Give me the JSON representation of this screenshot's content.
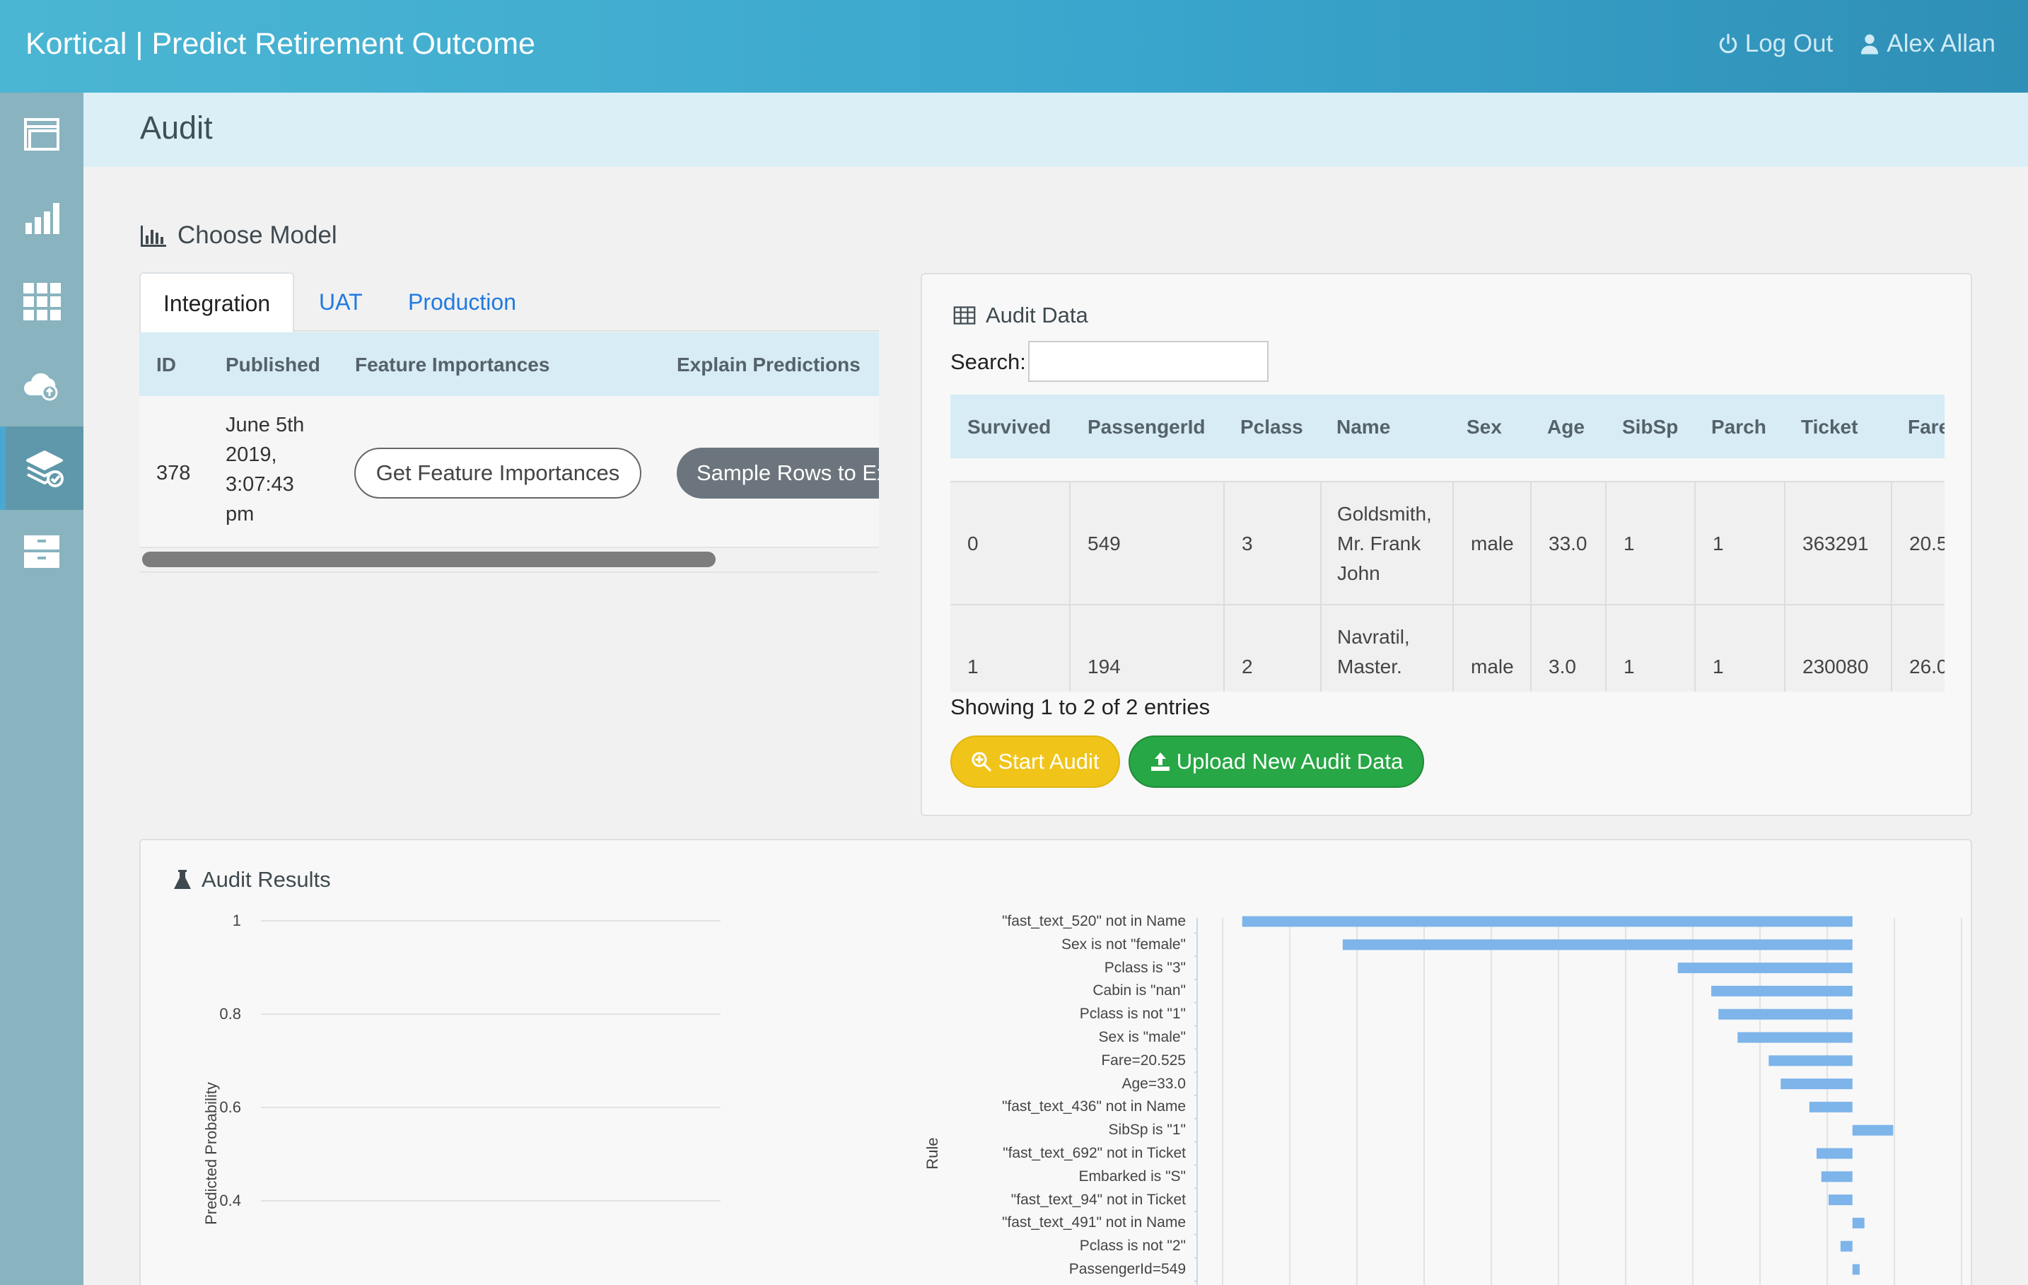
{
  "header": {
    "title": "Kortical | Predict Retirement Outcome",
    "logout_label": "Log Out",
    "user_label": "Alex Allan"
  },
  "sidebar": {
    "items": [
      {
        "icon": "window-icon"
      },
      {
        "icon": "bar-chart-icon"
      },
      {
        "icon": "grid-icon"
      },
      {
        "icon": "cloud-upload-icon"
      },
      {
        "icon": "layers-check-icon",
        "active": true
      },
      {
        "icon": "archive-icon"
      }
    ]
  },
  "page": {
    "title": "Audit"
  },
  "choose_model": {
    "title": "Choose Model",
    "tabs": [
      {
        "label": "Integration",
        "active": true
      },
      {
        "label": "UAT"
      },
      {
        "label": "Production"
      }
    ],
    "columns": [
      "ID",
      "Published",
      "Feature Importances",
      "Explain Predictions"
    ],
    "row": {
      "id": "378",
      "published_lines": [
        "June 5th",
        "2019,",
        "3:07:43",
        "pm"
      ],
      "feature_button": "Get Feature Importances",
      "explain_button": "Sample Rows to Ex"
    }
  },
  "audit_data": {
    "title": "Audit Data",
    "search_label": "Search:",
    "search_value": "",
    "columns": [
      "Survived",
      "PassengerId",
      "Pclass",
      "Name",
      "Sex",
      "Age",
      "SibSp",
      "Parch",
      "Ticket",
      "Fare"
    ],
    "rows": [
      {
        "survived": "0",
        "passengerid": "549",
        "pclass": "3",
        "name_lines": [
          "Goldsmith,",
          "Mr. Frank",
          "John"
        ],
        "sex": "male",
        "age": "33.0",
        "sibsp": "1",
        "parch": "1",
        "ticket": "363291",
        "fare": "20.5"
      },
      {
        "survived": "1",
        "passengerid": "194",
        "pclass": "2",
        "name_lines": [
          "Navratil,",
          "Master."
        ],
        "sex": "male",
        "age": "3.0",
        "sibsp": "1",
        "parch": "1",
        "ticket": "230080",
        "fare": "26.0"
      }
    ],
    "showing_text": "Showing 1 to 2 of 2 entries",
    "start_audit_label": "Start Audit",
    "upload_label": "Upload New Audit Data"
  },
  "audit_results": {
    "title": "Audit Results",
    "colors": {
      "bar": "#7db4ea",
      "grid": "#e3e3e3"
    }
  },
  "chart_data": [
    {
      "type": "line",
      "ylabel": "Predicted Probability",
      "y_ticks": [
        "1",
        "0.8",
        "0.6",
        "0.4"
      ],
      "ylim": [
        0.4,
        1
      ],
      "series": []
    },
    {
      "type": "bar",
      "orientation": "horizontal",
      "ylabel": "Rule",
      "categories": [
        "\"fast_text_520\" not in Name",
        "Sex is not \"female\"",
        "Pclass is \"3\"",
        "Cabin is \"nan\"",
        "Pclass is not \"1\"",
        "Sex is \"male\"",
        "Fare=20.525",
        "Age=33.0",
        "\"fast_text_436\" not in Name",
        "SibSp is \"1\"",
        "\"fast_text_692\" not in Ticket",
        "Embarked is \"S\"",
        "\"fast_text_94\" not in Ticket",
        "\"fast_text_491\" not in Name",
        "Pclass is not \"2\"",
        "PassengerId=549"
      ],
      "values": [
        -0.255,
        -0.213,
        -0.073,
        -0.059,
        -0.056,
        -0.048,
        -0.035,
        -0.03,
        -0.018,
        0.017,
        -0.015,
        -0.013,
        -0.01,
        0.005,
        -0.005,
        0.003
      ],
      "xlim": [
        -0.275,
        0.05
      ],
      "grid": true
    }
  ]
}
